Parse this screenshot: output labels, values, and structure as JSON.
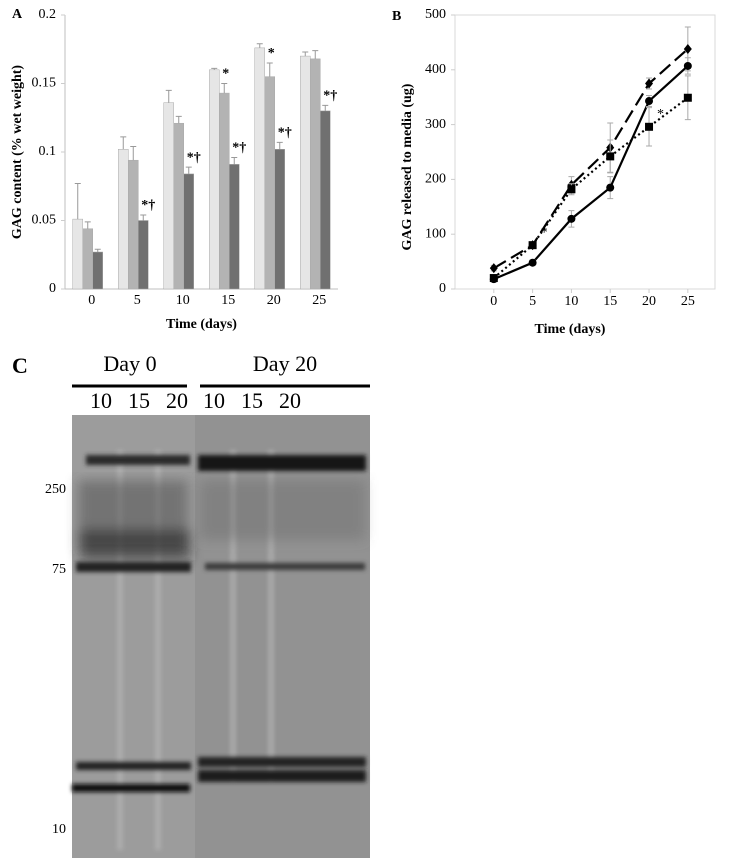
{
  "chart_data": [
    {
      "type": "bar",
      "panel": "A",
      "y_label": "GAG content (% wet weight)",
      "x_label": "Time (days)",
      "categories": [
        "0",
        "5",
        "10",
        "15",
        "20",
        "25"
      ],
      "ylim": [
        0,
        0.2
      ],
      "yticks": [
        0,
        0.05,
        0.1,
        0.15,
        0.2
      ],
      "grid": false,
      "series": [
        {
          "color": "#e6e6e6",
          "values": [
            0.051,
            0.102,
            0.136,
            0.16,
            0.176,
            0.17
          ],
          "errors": [
            0.026,
            0.009,
            0.009,
            0.001,
            0.003,
            0.003
          ],
          "markers": [
            null,
            null,
            null,
            null,
            null,
            null
          ]
        },
        {
          "color": "#b3b3b3",
          "values": [
            0.044,
            0.094,
            0.121,
            0.143,
            0.155,
            0.168
          ],
          "errors": [
            0.005,
            0.01,
            0.005,
            0.007,
            0.01,
            0.006
          ],
          "markers": [
            null,
            null,
            null,
            "*",
            "*",
            null
          ]
        },
        {
          "color": "#707070",
          "values": [
            0.027,
            0.05,
            0.084,
            0.091,
            0.102,
            0.13
          ],
          "errors": [
            0.002,
            0.004,
            0.005,
            0.005,
            0.005,
            0.004
          ],
          "markers": [
            null,
            "*†",
            "*†",
            "*†",
            "*†",
            "*†"
          ]
        }
      ]
    },
    {
      "type": "line",
      "panel": "B",
      "y_label": "GAG released to media (ug)",
      "x_label": "Time (days)",
      "x": [
        0,
        5,
        10,
        15,
        20,
        25
      ],
      "xlim": [
        -5,
        28.5
      ],
      "xticks": [
        0,
        5,
        10,
        15,
        20,
        25
      ],
      "ylim": [
        0,
        500
      ],
      "yticks": [
        0,
        100,
        200,
        300,
        400,
        500
      ],
      "grid": false,
      "series": [
        {
          "color": "#000000",
          "style": "dashed",
          "marker": "diamond",
          "values": [
            38,
            80,
            190,
            258,
            375,
            438
          ],
          "errors": [
            5,
            5,
            15,
            45,
            10,
            40
          ],
          "markers": [
            null,
            null,
            null,
            null,
            null,
            null
          ]
        },
        {
          "color": "#000000",
          "style": "solid",
          "marker": "circle",
          "values": [
            18,
            48,
            128,
            185,
            343,
            407
          ],
          "errors": [
            5,
            5,
            15,
            20,
            10,
            15
          ],
          "markers": [
            null,
            null,
            null,
            null,
            null,
            null
          ]
        },
        {
          "color": "#000000",
          "style": "dotted",
          "marker": "square",
          "values": [
            20,
            80,
            182,
            242,
            296,
            349
          ],
          "errors": [
            5,
            5,
            10,
            30,
            35,
            40
          ],
          "markers": [
            null,
            "*",
            null,
            null,
            "*",
            null
          ]
        }
      ]
    }
  ],
  "blot": {
    "panel": "C",
    "groups": [
      {
        "name": "Day 0",
        "lanes": [
          "10",
          "15",
          "20"
        ]
      },
      {
        "name": "Day 20",
        "lanes": [
          "10",
          "15",
          "20"
        ]
      }
    ],
    "size_markers": [
      "250",
      "75",
      "10"
    ]
  }
}
